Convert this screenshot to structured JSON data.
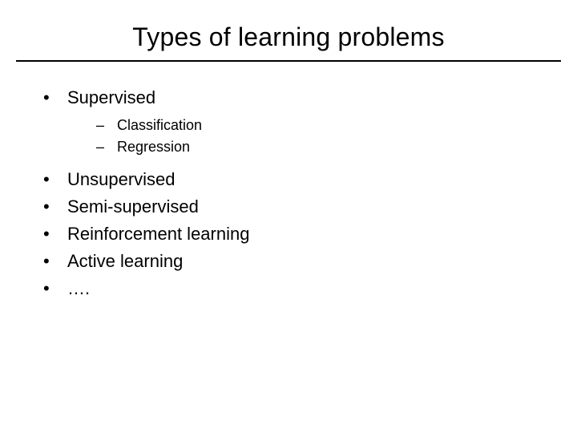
{
  "slide": {
    "title": "Types of learning problems",
    "title_fontsize": 32,
    "body_fontsize": 22,
    "sub_fontsize": 18,
    "background_color": "#ffffff",
    "text_color": "#000000",
    "rule_color": "#000000",
    "bullets": {
      "level1_glyph": "•",
      "level2_glyph": "–"
    },
    "items": [
      {
        "text": "Supervised",
        "children": [
          {
            "text": "Classification"
          },
          {
            "text": "Regression"
          }
        ]
      },
      {
        "text": "Unsupervised"
      },
      {
        "text": "Semi-supervised"
      },
      {
        "text": "Reinforcement learning"
      },
      {
        "text": "Active learning"
      },
      {
        "text": "…."
      }
    ]
  }
}
